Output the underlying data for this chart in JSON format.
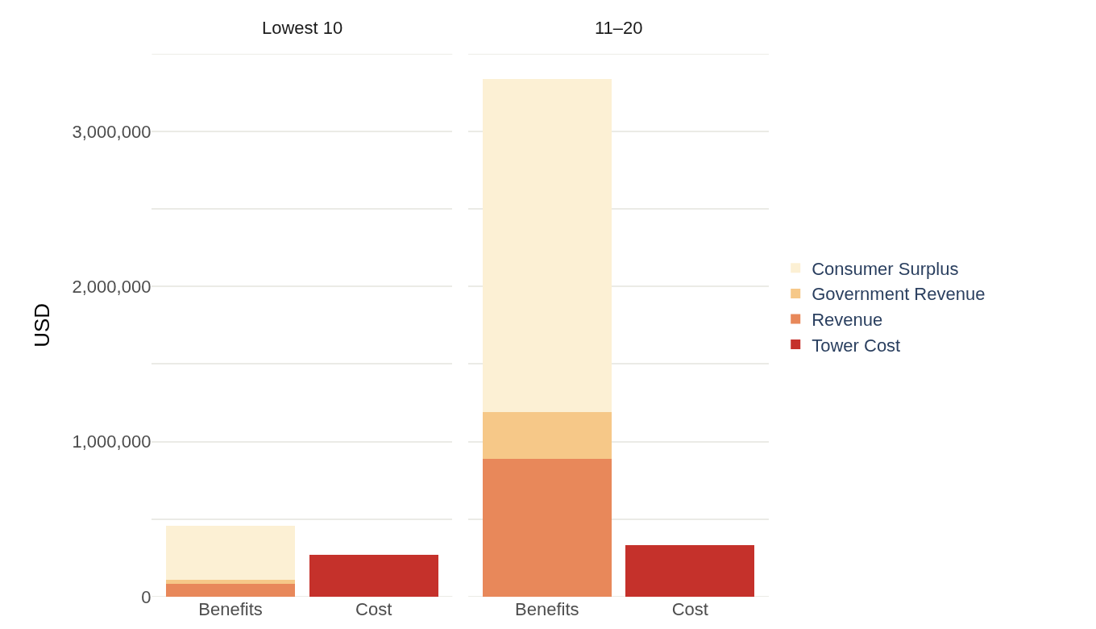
{
  "chart_data": [
    {
      "type": "bar",
      "title": "Lowest 10",
      "ylabel": "USD",
      "categories": [
        "Benefits",
        "Cost"
      ],
      "stacked": true,
      "grid": "y",
      "ylim": [
        0,
        3500000
      ],
      "yticks": [
        0,
        {
          "value": 500000,
          "label": null
        },
        {
          "value": 1000000,
          "label": "1,000,000"
        },
        {
          "value": 1500000,
          "label": null
        },
        {
          "value": 2000000,
          "label": "2,000,000"
        },
        {
          "value": 2500000,
          "label": null
        },
        {
          "value": 3000000,
          "label": "3,000,000"
        },
        {
          "value": 3500000,
          "label": null
        }
      ],
      "series": [
        {
          "color": "#c5312b",
          "values": [
            null,
            269000
          ]
        },
        {
          "color": "#e8885a",
          "values": [
            82000,
            null
          ]
        },
        {
          "color": "#f6c888",
          "values": [
            27000,
            null
          ]
        },
        {
          "color": "#fcf0d4",
          "values": [
            348000,
            null
          ]
        }
      ]
    },
    {
      "type": "bar",
      "title": "11–20",
      "categories": [
        "Benefits",
        "Cost"
      ],
      "stacked": true,
      "grid": "y",
      "legend": "right",
      "tick_labels": "x",
      "ylim": [
        0,
        3500000
      ],
      "yticks": [
        {
          "value": 0,
          "label": null
        },
        {
          "value": 500000,
          "label": null
        },
        {
          "value": 1000000,
          "label": null
        },
        {
          "value": 1500000,
          "label": null
        },
        {
          "value": 2000000,
          "label": null
        },
        {
          "value": 2500000,
          "label": null
        },
        {
          "value": 3000000,
          "label": null
        },
        {
          "value": 3500000,
          "label": null
        }
      ],
      "series": [
        {
          "name": "Tower Cost",
          "color": "#c5312b",
          "values": [
            null,
            333000
          ]
        },
        {
          "name": "Revenue",
          "color": "#e8885a",
          "values": [
            887000,
            null
          ]
        },
        {
          "name": "Government Revenue",
          "color": "#f6c888",
          "values": [
            303000,
            null
          ]
        },
        {
          "name": "Consumer Surplus",
          "color": "#fcf0d4",
          "values": [
            2150000,
            null
          ]
        }
      ]
    }
  ]
}
